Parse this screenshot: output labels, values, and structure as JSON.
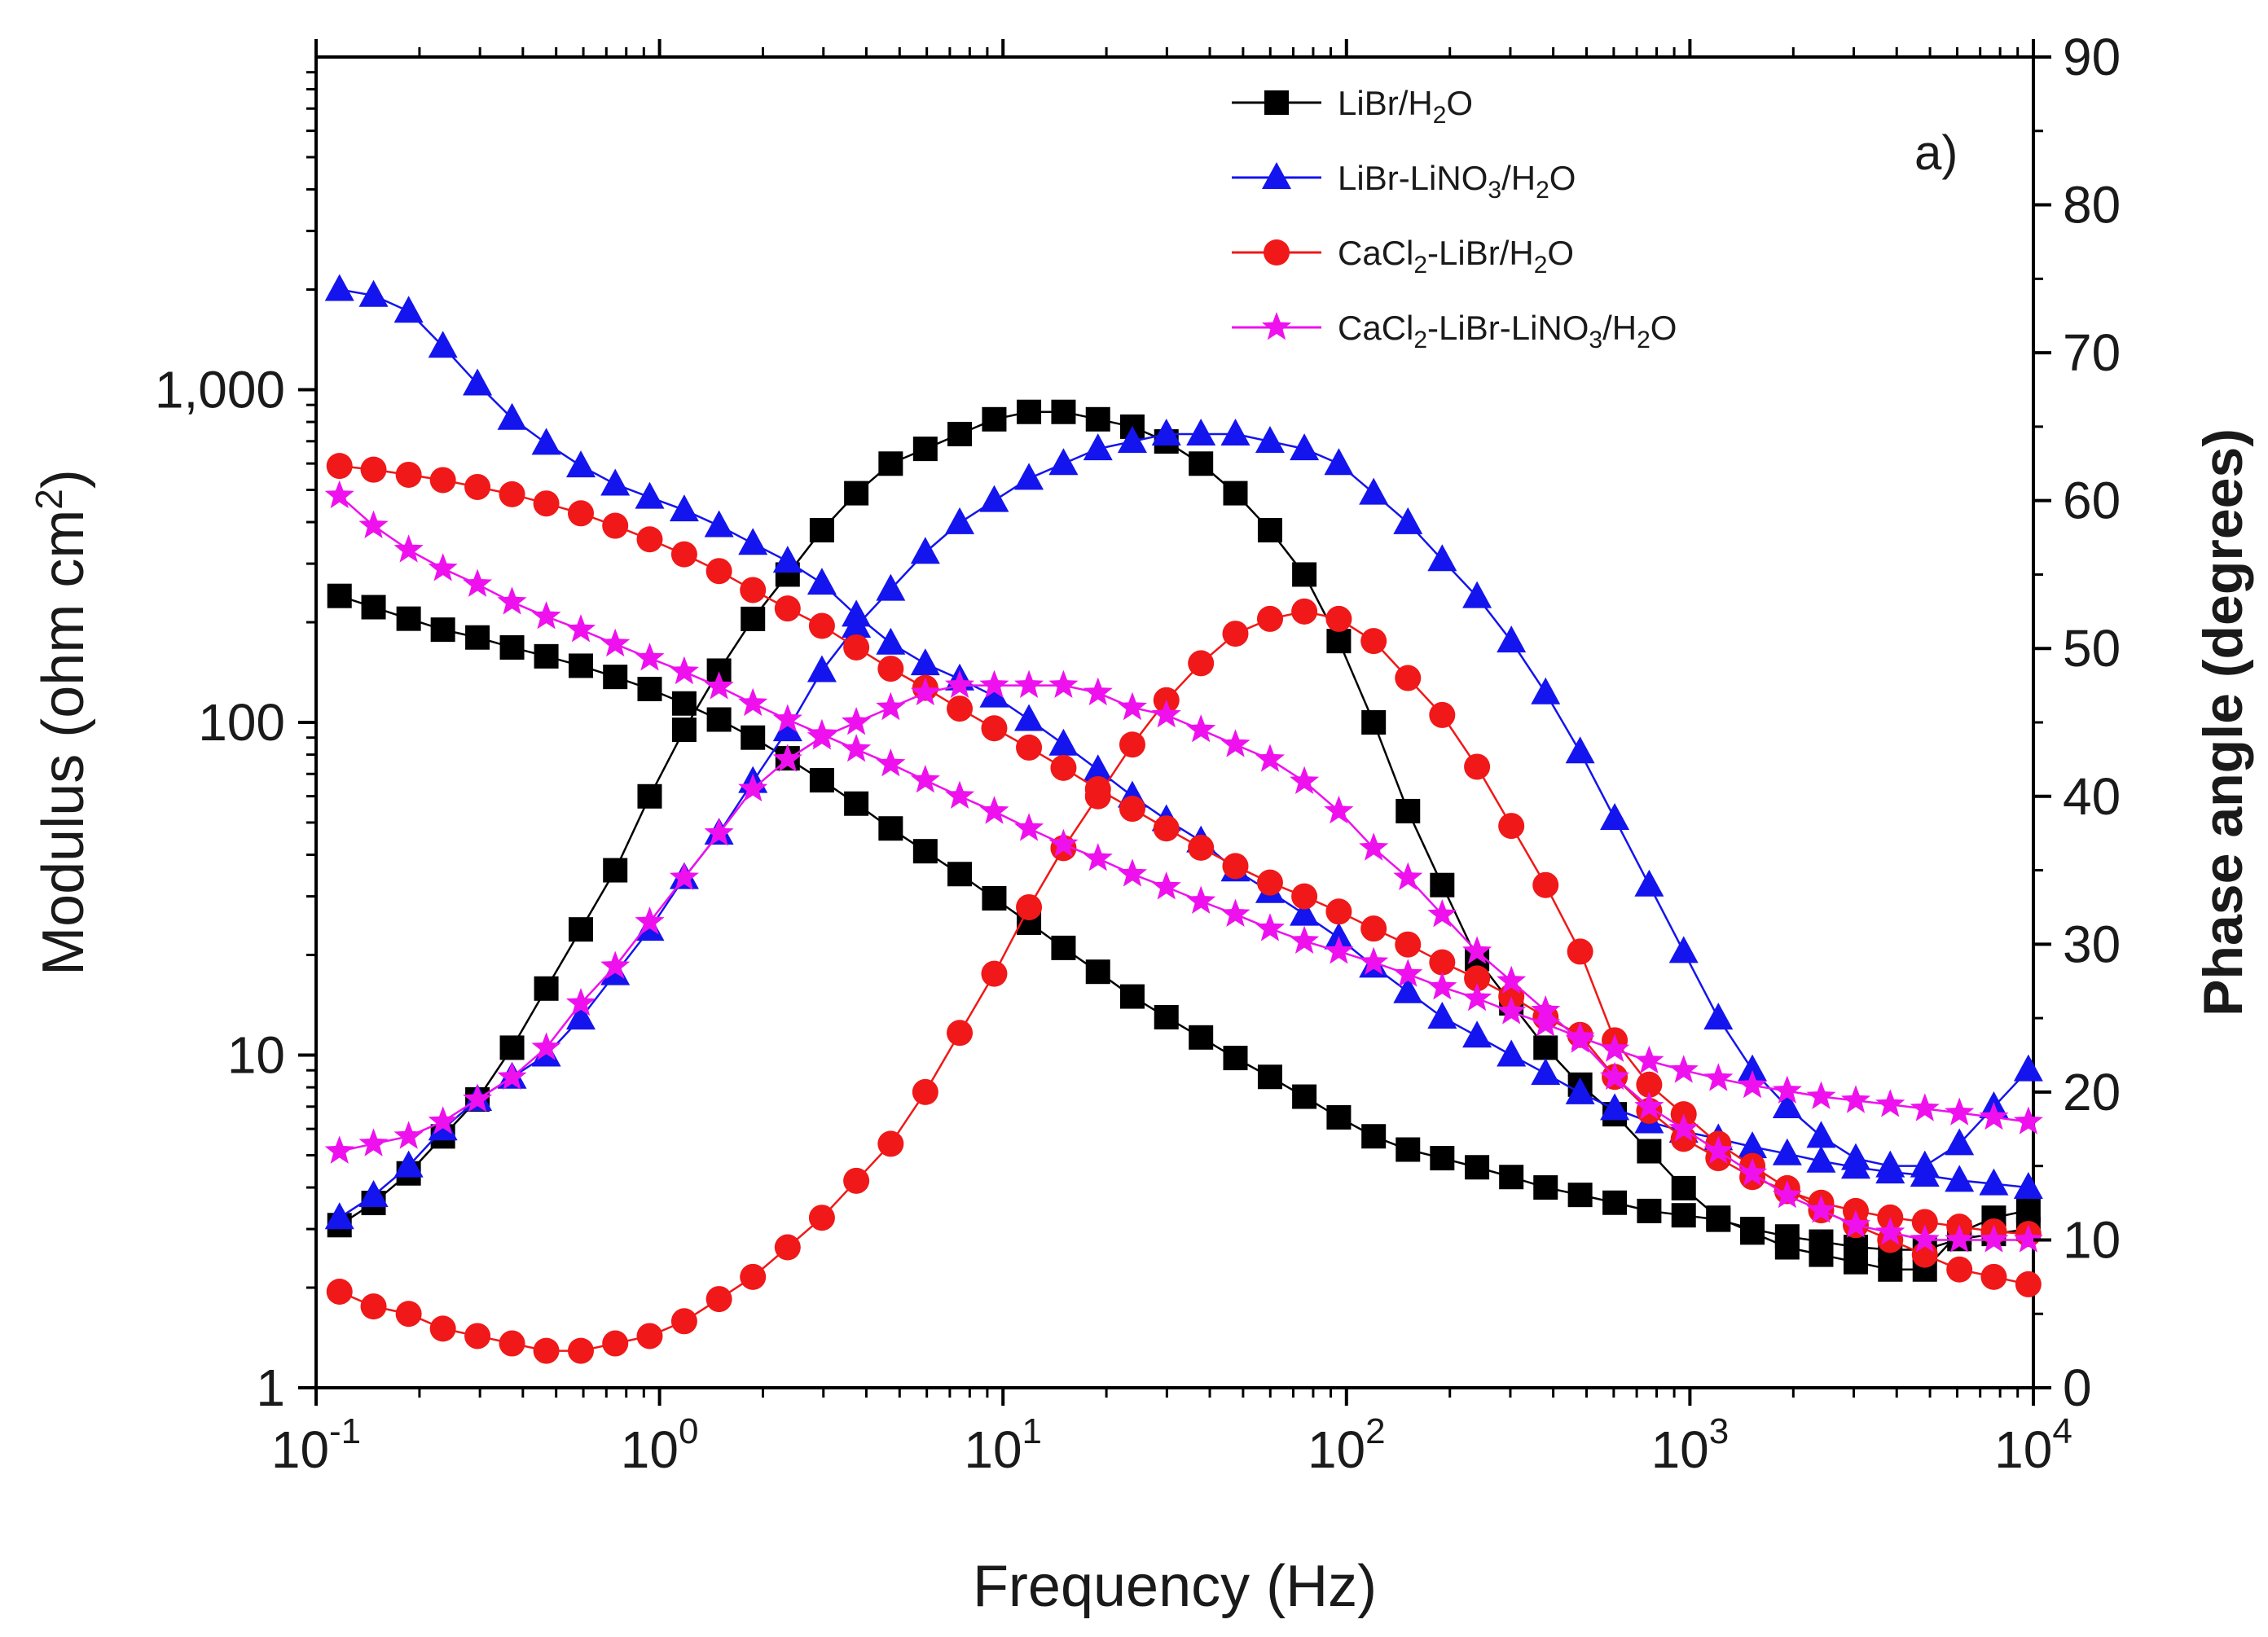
{
  "chart_data": {
    "type": "line",
    "panel_label": "a)",
    "xlabel": "Frequency (Hz)",
    "ylabel_left": {
      "pre": "Modulus (ohm cm",
      "sup": "2",
      "post": ")"
    },
    "ylabel_right": "Phase angle (degrees)",
    "x_scale": "log",
    "y_left_scale": "log",
    "xlim": [
      0.1,
      10000
    ],
    "ylim_left": [
      1,
      10000
    ],
    "ylim_right": [
      0,
      90
    ],
    "x_ticks": [
      {
        "base": "10",
        "exp": "-1"
      },
      {
        "base": "10",
        "exp": "0"
      },
      {
        "base": "10",
        "exp": "1"
      },
      {
        "base": "10",
        "exp": "2"
      },
      {
        "base": "10",
        "exp": "3"
      },
      {
        "base": "10",
        "exp": "4"
      }
    ],
    "y_left_ticks": [
      "1",
      "10",
      "100",
      "1,000"
    ],
    "y_right_ticks": [
      "0",
      "10",
      "20",
      "30",
      "40",
      "50",
      "60",
      "70",
      "80",
      "90"
    ],
    "legend_position": "top-center",
    "frequencies": [
      0.117,
      0.147,
      0.186,
      0.234,
      0.295,
      0.372,
      0.468,
      0.59,
      0.743,
      0.936,
      1.18,
      1.49,
      1.87,
      2.36,
      2.97,
      3.74,
      4.71,
      5.94,
      7.48,
      9.43,
      11.9,
      15.0,
      18.9,
      23.8,
      29.9,
      37.7,
      47.5,
      59.9,
      75.4,
      95.0,
      120,
      151,
      190,
      240,
      302,
      380,
      479,
      604,
      761,
      959,
      1210,
      1520,
      1920,
      2410,
      3040,
      3830,
      4830,
      6090,
      7670,
      9670
    ],
    "series": [
      {
        "name_parts": [
          [
            "LiBr/H",
            "n"
          ],
          [
            "2",
            "sub"
          ],
          [
            "O",
            "n"
          ]
        ],
        "color": "#000000",
        "marker": "square",
        "modulus": [
          240,
          222,
          205,
          190,
          180,
          168,
          158,
          148,
          137,
          126,
          114,
          102,
          90,
          78,
          67,
          57,
          48,
          41,
          35,
          29.6,
          25,
          21,
          17.8,
          15,
          13,
          11.3,
          9.8,
          8.6,
          7.5,
          6.5,
          5.7,
          5.2,
          4.9,
          4.6,
          4.3,
          4.0,
          3.8,
          3.6,
          3.4,
          3.3,
          3.2,
          3.0,
          2.85,
          2.75,
          2.65,
          2.6,
          2.6,
          2.8,
          2.9,
          3.0
        ],
        "phase": [
          11.0,
          12.5,
          14.5,
          17.0,
          19.5,
          23.0,
          27.0,
          31.0,
          35.0,
          40.0,
          44.5,
          48.5,
          52.0,
          55.0,
          58.0,
          60.5,
          62.5,
          63.5,
          64.5,
          65.5,
          66.0,
          66.0,
          65.5,
          65.0,
          64.0,
          62.5,
          60.5,
          58.0,
          55.0,
          50.5,
          45.0,
          39.0,
          34.0,
          29.0,
          26.0,
          23.0,
          20.5,
          18.5,
          16.0,
          13.5,
          11.5,
          10.5,
          9.5,
          9.0,
          8.5,
          8.0,
          8.0,
          10.5,
          11.5,
          12.0
        ]
      },
      {
        "name_parts": [
          [
            "LiBr-LiNO",
            "n"
          ],
          [
            "3",
            "sub"
          ],
          [
            "/H",
            "n"
          ],
          [
            "2",
            "sub"
          ],
          [
            "O",
            "n"
          ]
        ],
        "color": "#1414ee",
        "marker": "triangle",
        "modulus": [
          2000,
          1920,
          1720,
          1350,
          1040,
          820,
          690,
          590,
          520,
          475,
          435,
          390,
          345,
          305,
          262,
          210,
          173,
          150,
          135,
          120,
          102,
          86,
          72,
          60,
          51,
          44,
          36,
          31,
          26.5,
          22.5,
          18.5,
          15.5,
          13,
          11.4,
          10.0,
          8.8,
          7.7,
          6.9,
          6.3,
          5.9,
          5.6,
          5.3,
          5.05,
          4.8,
          4.6,
          4.45,
          4.35,
          4.2,
          4.1,
          4.0
        ],
        "phase": [
          11.5,
          13.0,
          15.0,
          17.5,
          19.5,
          21.0,
          22.5,
          25.0,
          28.0,
          31.0,
          34.5,
          37.5,
          41.0,
          44.5,
          48.5,
          51.5,
          54.0,
          56.5,
          58.5,
          60.0,
          61.5,
          62.5,
          63.5,
          64.0,
          64.5,
          64.5,
          64.5,
          64.0,
          63.5,
          62.5,
          60.5,
          58.5,
          56.0,
          53.5,
          50.5,
          47.0,
          43.0,
          38.5,
          34.0,
          29.5,
          25.0,
          21.5,
          19.0,
          17.0,
          15.5,
          15.0,
          15.0,
          16.5,
          19.0,
          21.5
        ]
      },
      {
        "name_parts": [
          [
            "CaCl",
            "n"
          ],
          [
            "2",
            "sub"
          ],
          [
            "-LiBr/H",
            "n"
          ],
          [
            "2",
            "sub"
          ],
          [
            "O",
            "n"
          ]
        ],
        "color": "#f01818",
        "marker": "circle",
        "modulus": [
          590,
          575,
          555,
          535,
          510,
          485,
          455,
          425,
          390,
          355,
          320,
          285,
          250,
          220,
          195,
          168,
          145,
          127,
          110,
          96,
          84,
          73,
          63,
          55,
          48,
          42,
          37,
          33,
          30,
          27,
          24,
          21.5,
          19,
          17,
          15,
          13,
          11.5,
          8.6,
          6.8,
          5.6,
          4.9,
          4.3,
          3.9,
          3.6,
          3.4,
          3.25,
          3.15,
          3.05,
          2.95,
          2.9
        ],
        "phase": [
          6.5,
          5.5,
          5.0,
          4.0,
          3.5,
          3.0,
          2.5,
          2.5,
          3.0,
          3.5,
          4.5,
          6.0,
          7.5,
          9.5,
          11.5,
          14.0,
          16.5,
          20.0,
          24.0,
          28.0,
          32.5,
          36.5,
          40.0,
          43.5,
          46.5,
          49.0,
          51.0,
          52.0,
          52.5,
          52.0,
          50.5,
          48.0,
          45.5,
          42.0,
          38.0,
          34.0,
          29.5,
          23.5,
          20.5,
          18.5,
          16.5,
          15.0,
          13.5,
          12.0,
          11.0,
          10.0,
          9.0,
          8.0,
          7.5,
          7.0
        ]
      },
      {
        "name_parts": [
          [
            "CaCl",
            "n"
          ],
          [
            "2",
            "sub"
          ],
          [
            "-LiBr-LiNO",
            "n"
          ],
          [
            "3",
            "sub"
          ],
          [
            "/H",
            "n"
          ],
          [
            "2",
            "sub"
          ],
          [
            "O",
            "n"
          ]
        ],
        "color": "#ee11ee",
        "marker": "star",
        "modulus": [
          480,
          390,
          330,
          290,
          260,
          230,
          208,
          190,
          172,
          156,
          142,
          128,
          114,
          102,
          92,
          83,
          75,
          67,
          60,
          54,
          48,
          43,
          39,
          35,
          32,
          29,
          26.5,
          24,
          22,
          20.5,
          19,
          17.5,
          16,
          14.8,
          13.5,
          12.4,
          11.3,
          10.4,
          9.6,
          9.0,
          8.5,
          8.1,
          7.8,
          7.5,
          7.3,
          7.1,
          6.9,
          6.7,
          6.5,
          6.3
        ],
        "phase": [
          16.0,
          16.5,
          17.0,
          18.0,
          19.5,
          21.0,
          23.0,
          26.0,
          28.5,
          31.5,
          34.5,
          37.5,
          40.5,
          42.5,
          44.0,
          45.0,
          46.0,
          47.0,
          47.5,
          47.5,
          47.5,
          47.5,
          47.0,
          46.0,
          45.5,
          44.5,
          43.5,
          42.5,
          41.0,
          39.0,
          36.5,
          34.5,
          32.0,
          29.5,
          27.5,
          25.5,
          23.5,
          21.0,
          19.0,
          17.5,
          16.0,
          14.5,
          13.0,
          12.0,
          11.0,
          10.5,
          10.0,
          10.0,
          10.0,
          10.0
        ]
      }
    ]
  }
}
